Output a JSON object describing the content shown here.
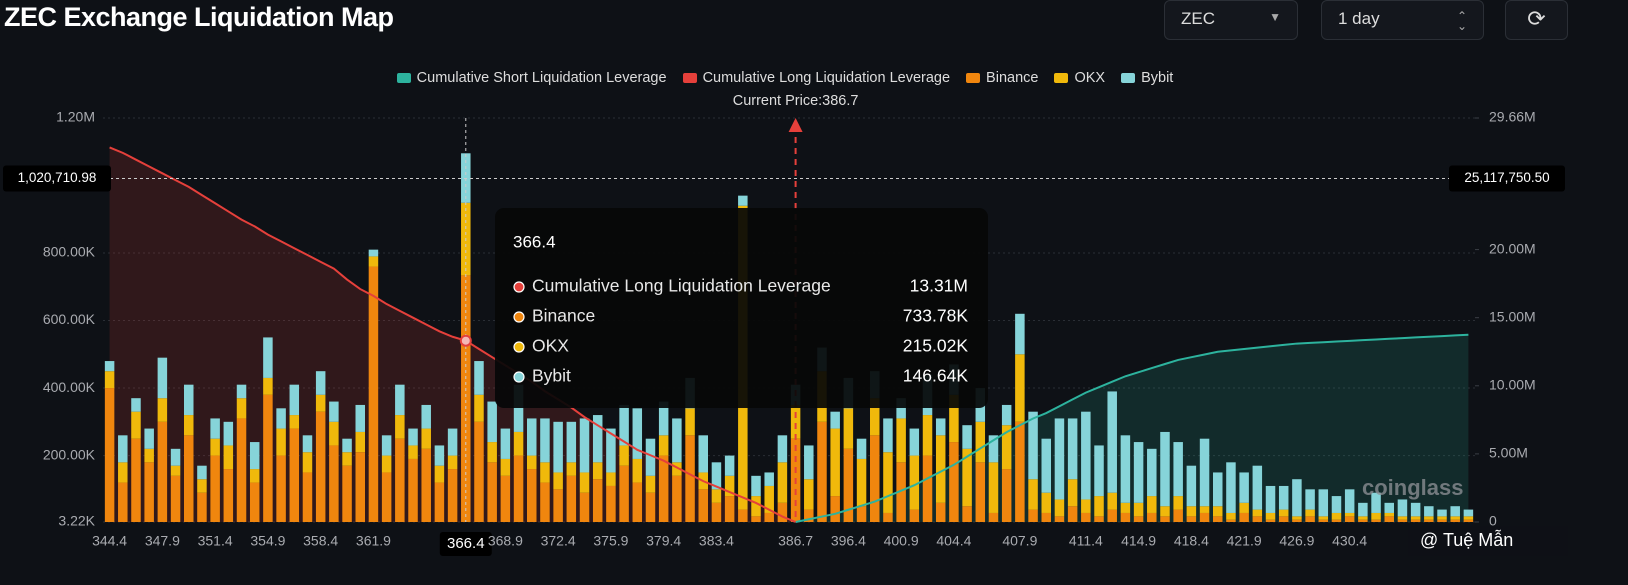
{
  "header": {
    "title": "ZEC Exchange Liquidation Map",
    "symbol": "ZEC",
    "interval": "1 day"
  },
  "chart_data": {
    "type": "bar",
    "categories": [
      "344.4",
      null,
      null,
      null,
      "347.9",
      null,
      null,
      null,
      "351.4",
      null,
      null,
      null,
      "354.9",
      null,
      null,
      null,
      "358.4",
      null,
      null,
      null,
      "361.9",
      null,
      null,
      null,
      null,
      null,
      null,
      "366.4",
      null,
      null,
      "368.9",
      null,
      null,
      null,
      "372.4",
      null,
      null,
      null,
      "375.9",
      null,
      null,
      null,
      "379.4",
      null,
      null,
      null,
      "383.4",
      null,
      null,
      null,
      null,
      null,
      "386.7",
      null,
      null,
      null,
      "396.4",
      null,
      null,
      null,
      "400.9",
      null,
      null,
      null,
      "404.4",
      null,
      null,
      null,
      null,
      "407.9",
      null,
      null,
      null,
      null,
      "411.4",
      null,
      null,
      null,
      "414.9",
      null,
      null,
      null,
      "418.4",
      null,
      null,
      null,
      "421.9",
      null,
      null,
      null,
      "426.9",
      null,
      null,
      null,
      "430.4",
      null,
      null,
      null,
      null,
      null,
      null,
      null,
      null,
      null
    ],
    "series": [
      {
        "name": "Cumulative Short Liquidation Leverage",
        "type": "line",
        "axis": "y2",
        "color": "#2db39e",
        "values": [
          null,
          null,
          null,
          null,
          null,
          null,
          null,
          null,
          null,
          null,
          null,
          null,
          null,
          null,
          null,
          null,
          null,
          null,
          null,
          null,
          null,
          null,
          null,
          null,
          null,
          null,
          null,
          null,
          null,
          null,
          null,
          null,
          null,
          null,
          null,
          null,
          null,
          null,
          null,
          null,
          null,
          null,
          null,
          null,
          null,
          null,
          null,
          null,
          null,
          null,
          null,
          null,
          0,
          200000,
          400000,
          600000,
          900000,
          1200000,
          1500000,
          1900000,
          2300000,
          2700000,
          3200000,
          3700000,
          4200000,
          4800000,
          5400000,
          6000000,
          6600000,
          7100000,
          7600000,
          8000000,
          8500000,
          9000000,
          9500000,
          9900000,
          10300000,
          10700000,
          11000000,
          11300000,
          11600000,
          11900000,
          12100000,
          12300000,
          12500000,
          12600000,
          12700000,
          12800000,
          12900000,
          13000000,
          13100000,
          13150000,
          13200000,
          13250000,
          13300000,
          13350000,
          13400000,
          13450000,
          13500000,
          13550000,
          13600000,
          13650000,
          13700000,
          13750000
        ]
      },
      {
        "name": "Cumulative Long Liquidation Leverage",
        "type": "line",
        "axis": "y2",
        "color": "#e5403b",
        "values": [
          27500000,
          27100000,
          26600000,
          26100000,
          25600000,
          25100000,
          24600000,
          24000000,
          23400000,
          22800000,
          22200000,
          21700000,
          21100000,
          20600000,
          20100000,
          19600000,
          19100000,
          18600000,
          17800000,
          17100000,
          16600000,
          16000000,
          15500000,
          15000000,
          14500000,
          14000000,
          13600000,
          13310000,
          12700000,
          12100000,
          11500000,
          10900000,
          10300000,
          9600000,
          9000000,
          8400000,
          7700000,
          7100000,
          6500000,
          5900000,
          5300000,
          4900000,
          4500000,
          4000000,
          3500000,
          3000000,
          2600000,
          2200000,
          1800000,
          1400000,
          900000,
          400000,
          0,
          null,
          null,
          null,
          null,
          null,
          null,
          null,
          null,
          null,
          null,
          null,
          null,
          null,
          null,
          null,
          null,
          null,
          null,
          null,
          null,
          null,
          null,
          null,
          null,
          null,
          null,
          null,
          null,
          null,
          null,
          null,
          null,
          null,
          null,
          null,
          null,
          null,
          null,
          null,
          null,
          null,
          null,
          null,
          null,
          null,
          null,
          null,
          null,
          null,
          null,
          null
        ]
      },
      {
        "name": "Binance",
        "type": "bar",
        "color": "#f0860e",
        "values": [
          400000,
          120000,
          250000,
          180000,
          300000,
          140000,
          260000,
          90000,
          200000,
          160000,
          310000,
          120000,
          380000,
          200000,
          280000,
          150000,
          330000,
          230000,
          170000,
          210000,
          760000,
          150000,
          250000,
          190000,
          220000,
          120000,
          160000,
          733780,
          300000,
          180000,
          140000,
          200000,
          160000,
          120000,
          100000,
          140000,
          90000,
          130000,
          110000,
          170000,
          120000,
          90000,
          200000,
          140000,
          260000,
          100000,
          60000,
          80000,
          40000,
          20000,
          30000,
          60000,
          250000,
          40000,
          300000,
          80000,
          220000,
          50000,
          260000,
          30000,
          180000,
          40000,
          200000,
          60000,
          240000,
          50000,
          180000,
          30000,
          160000,
          300000,
          40000,
          30000,
          20000,
          50000,
          30000,
          20000,
          40000,
          30000,
          20000,
          30000,
          20000,
          40000,
          20000,
          30000,
          20000,
          10000,
          30000,
          20000,
          10000,
          20000,
          10000,
          20000,
          10000,
          10000,
          20000,
          10000,
          10000,
          20000,
          10000,
          10000,
          10000,
          10000,
          10000,
          10000
        ]
      },
      {
        "name": "OKX",
        "type": "bar",
        "color": "#f0b90b",
        "values": [
          50000,
          60000,
          80000,
          40000,
          70000,
          30000,
          60000,
          40000,
          50000,
          70000,
          60000,
          40000,
          50000,
          80000,
          40000,
          60000,
          50000,
          70000,
          40000,
          60000,
          30000,
          50000,
          70000,
          40000,
          60000,
          50000,
          40000,
          215020,
          80000,
          60000,
          50000,
          70000,
          40000,
          60000,
          50000,
          40000,
          60000,
          50000,
          40000,
          60000,
          70000,
          50000,
          60000,
          40000,
          80000,
          50000,
          40000,
          60000,
          900000,
          60000,
          80000,
          120000,
          100000,
          90000,
          150000,
          200000,
          120000,
          140000,
          110000,
          180000,
          130000,
          160000,
          120000,
          200000,
          140000,
          170000,
          120000,
          150000,
          130000,
          200000,
          90000,
          60000,
          50000,
          80000,
          40000,
          60000,
          50000,
          30000,
          40000,
          50000,
          30000,
          40000,
          30000,
          20000,
          30000,
          20000,
          30000,
          20000,
          20000,
          20000,
          10000,
          20000,
          10000,
          20000,
          10000,
          10000,
          20000,
          10000,
          10000,
          10000,
          10000,
          10000,
          10000,
          10000
        ]
      },
      {
        "name": "Bybit",
        "type": "bar",
        "color": "#86d4d9",
        "values": [
          30000,
          80000,
          40000,
          60000,
          120000,
          50000,
          90000,
          40000,
          60000,
          70000,
          40000,
          80000,
          120000,
          60000,
          90000,
          50000,
          70000,
          60000,
          40000,
          80000,
          20000,
          60000,
          90000,
          50000,
          70000,
          60000,
          80000,
          146640,
          100000,
          120000,
          90000,
          140000,
          110000,
          130000,
          150000,
          120000,
          160000,
          140000,
          130000,
          120000,
          150000,
          110000,
          100000,
          130000,
          90000,
          110000,
          80000,
          60000,
          30000,
          60000,
          40000,
          80000,
          60000,
          100000,
          70000,
          50000,
          90000,
          60000,
          80000,
          100000,
          60000,
          80000,
          120000,
          50000,
          90000,
          70000,
          100000,
          80000,
          60000,
          120000,
          200000,
          160000,
          240000,
          180000,
          260000,
          150000,
          300000,
          200000,
          180000,
          140000,
          220000,
          160000,
          120000,
          200000,
          100000,
          150000,
          90000,
          130000,
          80000,
          70000,
          110000,
          60000,
          80000,
          50000,
          70000,
          40000,
          60000,
          30000,
          50000,
          40000,
          30000,
          20000,
          30000,
          20000
        ]
      }
    ],
    "ylim": [
      3220,
      1200000
    ],
    "yticks": [
      {
        "value": 3220,
        "label": "3.22K"
      },
      {
        "value": 200000,
        "label": "200.00K"
      },
      {
        "value": 400000,
        "label": "400.00K"
      },
      {
        "value": 600000,
        "label": "600.00K"
      },
      {
        "value": 800000,
        "label": "800.00K"
      },
      {
        "value": 1200000,
        "label": "1.20M"
      }
    ],
    "y2lim": [
      0,
      29660000
    ],
    "y2ticks": [
      0,
      {
        "value": 5000000,
        "label": "5.00M"
      },
      {
        "value": 10000000,
        "label": "10.00M"
      },
      {
        "value": 15000000,
        "label": "15.00M"
      },
      {
        "value": 20000000,
        "label": "20.00M"
      },
      {
        "value": 29660000,
        "label": "29.66M"
      }
    ],
    "grid": true,
    "legend": "top",
    "current_price": {
      "category": "386.7",
      "label": "Current Price:386.7"
    },
    "crosshair": {
      "category": "366.4",
      "y": {
        "value": 1020710.98,
        "label": "1,020,710.98"
      },
      "y2": {
        "value": 25117750.5,
        "label": "25,117,750.50"
      }
    },
    "tooltip": {
      "title": "366.4",
      "rows": [
        {
          "name": "Cumulative Long Liquidation Leverage",
          "value": "13.31M"
        },
        {
          "name": "Binance",
          "value": "733.78K"
        },
        {
          "name": "OKX",
          "value": "215.02K"
        },
        {
          "name": "Bybit",
          "value": "146.64K"
        }
      ]
    },
    "watermark": "coinglass",
    "credit": "@ Tuệ Mẫn"
  }
}
